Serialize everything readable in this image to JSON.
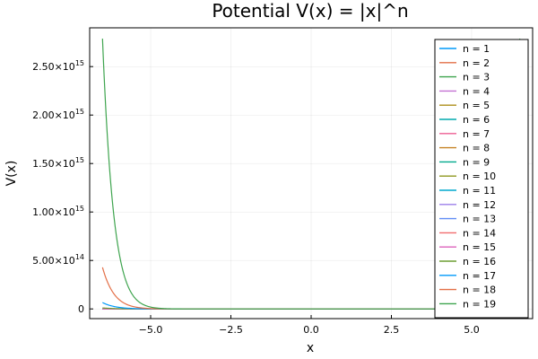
{
  "chart_data": {
    "type": "line",
    "title": "Potential V(x) = |x|^n",
    "xlabel": "x",
    "ylabel": "V(x)",
    "xlim": [
      -6.9,
      6.9
    ],
    "ylim": [
      -100000000000000.0,
      2900000000000000.0
    ],
    "x_ticks": [
      -5.0,
      -2.5,
      0.0,
      2.5,
      5.0
    ],
    "x_tick_labels": [
      "−5.0",
      "−2.5",
      "0.0",
      "2.5",
      "5.0"
    ],
    "y_ticks": [
      {
        "value": 0,
        "mantissa": "0",
        "exponent": ""
      },
      {
        "value": 500000000000000.0,
        "mantissa": "5.00×10",
        "exponent": "14"
      },
      {
        "value": 1000000000000000.0,
        "mantissa": "1.00×10",
        "exponent": "15"
      },
      {
        "value": 1500000000000000.0,
        "mantissa": "1.50×10",
        "exponent": "15"
      },
      {
        "value": 2000000000000000.0,
        "mantissa": "2.00×10",
        "exponent": "15"
      },
      {
        "value": 2500000000000000.0,
        "mantissa": "2.50×10",
        "exponent": "15"
      }
    ],
    "x_range": [
      -6.5,
      6.5
    ],
    "function": "|x|^n",
    "grid": true,
    "legend_position": "top-right",
    "series": [
      {
        "name": "n = 1",
        "n": 1,
        "color": "#009AFA"
      },
      {
        "name": "n = 2",
        "n": 2,
        "color": "#E36F47"
      },
      {
        "name": "n = 3",
        "n": 3,
        "color": "#3EA44E"
      },
      {
        "name": "n = 4",
        "n": 4,
        "color": "#C371D2"
      },
      {
        "name": "n = 5",
        "n": 5,
        "color": "#AC8E18"
      },
      {
        "name": "n = 6",
        "n": 6,
        "color": "#00AAAE"
      },
      {
        "name": "n = 7",
        "n": 7,
        "color": "#ED5E93"
      },
      {
        "name": "n = 8",
        "n": 8,
        "color": "#C68225"
      },
      {
        "name": "n = 9",
        "n": 9,
        "color": "#00A98D"
      },
      {
        "name": "n = 10",
        "n": 10,
        "color": "#8E971E"
      },
      {
        "name": "n = 11",
        "n": 11,
        "color": "#00A9CD"
      },
      {
        "name": "n = 12",
        "n": 12,
        "color": "#9B7FE9"
      },
      {
        "name": "n = 13",
        "n": 13,
        "color": "#618DF6"
      },
      {
        "name": "n = 14",
        "n": 14,
        "color": "#F16C6E"
      },
      {
        "name": "n = 15",
        "n": 15,
        "color": "#DC63BB"
      },
      {
        "name": "n = 16",
        "n": 16,
        "color": "#6D9E33"
      },
      {
        "name": "n = 17",
        "n": 17,
        "color": "#009AFA"
      },
      {
        "name": "n = 18",
        "n": 18,
        "color": "#E36F47"
      },
      {
        "name": "n = 19",
        "n": 19,
        "color": "#3EA44E"
      }
    ]
  }
}
